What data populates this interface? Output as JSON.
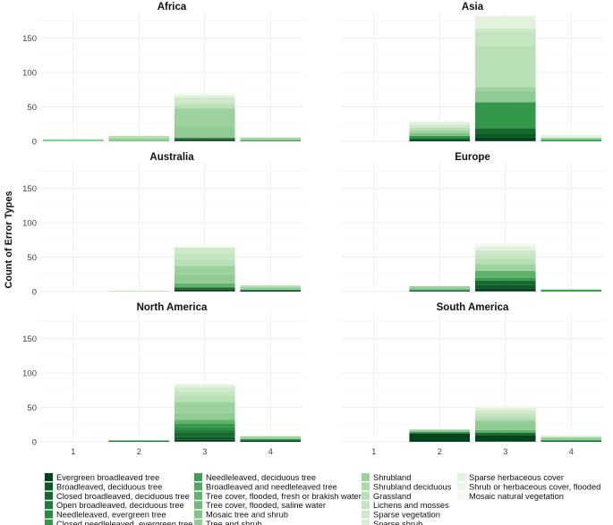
{
  "chart_data": {
    "type": "bar",
    "stacked": true,
    "facets": [
      "Africa",
      "Asia",
      "Australia",
      "Europe",
      "North America",
      "South America"
    ],
    "categories": [
      "1",
      "2",
      "3",
      "4"
    ],
    "ylabel": "Count of Error Types",
    "xlabel": "",
    "ylim": [
      0,
      190
    ],
    "yticks": [
      0,
      50,
      100,
      150
    ],
    "grid": true,
    "legend_position": "bottom",
    "legend": [
      {
        "name": "Evergreen broadleaved tree",
        "color": "#00441b"
      },
      {
        "name": "Broadleaved, deciduous tree",
        "color": "#0a5a27"
      },
      {
        "name": "Closed broadleaved, deciduous tree",
        "color": "#17692f"
      },
      {
        "name": "Open broadleaved, deciduous tree",
        "color": "#217a38"
      },
      {
        "name": "Needleleaved, evergreen tree",
        "color": "#2a8a41"
      },
      {
        "name": "Closed needleleaved, evergreen tree",
        "color": "#34974a"
      },
      {
        "name": "Needleleaved, deciduous tree",
        "color": "#419f54"
      },
      {
        "name": "Broadleaved and needleleaved tree",
        "color": "#4fa85f"
      },
      {
        "name": "Tree cover, flooded, fresh or brakish water",
        "color": "#5fb16c"
      },
      {
        "name": "Tree cover, flooded, saline water",
        "color": "#6fba78"
      },
      {
        "name": "Mosaic tree and shrub",
        "color": "#7fc385"
      },
      {
        "name": "Tree and shrub",
        "color": "#8fcb92"
      },
      {
        "name": "Shrubland",
        "color": "#9dd29e"
      },
      {
        "name": "Shrubland deciduous",
        "color": "#abd9aa"
      },
      {
        "name": "Grassland",
        "color": "#b8dfb5"
      },
      {
        "name": "Lichens and mosses",
        "color": "#c4e5c0"
      },
      {
        "name": "Sparse vegetation",
        "color": "#cfeaca"
      },
      {
        "name": "Sparse shrub",
        "color": "#d9eed4"
      },
      {
        "name": "Sparse herbaceous cover",
        "color": "#e2f2dd"
      },
      {
        "name": "Shrub or herbaceous cover, flooded",
        "color": "#ebf6e7"
      },
      {
        "name": "Mosaic natural vegetation",
        "color": "#f3faf1"
      }
    ],
    "panels": [
      {
        "title": "Africa",
        "bars": [
          {
            "category": "1",
            "segments": [
              {
                "class": "Tree cover, flooded, saline water",
                "value": 1
              },
              {
                "class": "Tree and shrub",
                "value": 1
              },
              {
                "class": "Shrubland",
                "value": 1
              }
            ]
          },
          {
            "category": "2",
            "segments": [
              {
                "class": "Mosaic tree and shrub",
                "value": 2
              },
              {
                "class": "Shrubland",
                "value": 3
              },
              {
                "class": "Grassland",
                "value": 3
              }
            ]
          },
          {
            "category": "3",
            "segments": [
              {
                "class": "Evergreen broadleaved tree",
                "value": 1
              },
              {
                "class": "Broadleaved, deciduous tree",
                "value": 2
              },
              {
                "class": "Closed broadleaved, deciduous tree",
                "value": 2
              },
              {
                "class": "Tree and shrub",
                "value": 17
              },
              {
                "class": "Shrubland",
                "value": 26
              },
              {
                "class": "Grassland",
                "value": 4
              },
              {
                "class": "Lichens and mosses",
                "value": 5
              },
              {
                "class": "Sparse vegetation",
                "value": 7
              },
              {
                "class": "Sparse herbaceous cover",
                "value": 3
              },
              {
                "class": "Mosaic natural vegetation",
                "value": 3
              }
            ]
          },
          {
            "category": "4",
            "segments": [
              {
                "class": "Closed broadleaved, deciduous tree",
                "value": 1
              },
              {
                "class": "Tree and shrub",
                "value": 2
              },
              {
                "class": "Shrubland",
                "value": 2
              },
              {
                "class": "Sparse vegetation",
                "value": 1
              }
            ]
          }
        ]
      },
      {
        "title": "Asia",
        "bars": [
          {
            "category": "1",
            "segments": []
          },
          {
            "category": "2",
            "segments": [
              {
                "class": "Evergreen broadleaved tree",
                "value": 2
              },
              {
                "class": "Closed broadleaved, deciduous tree",
                "value": 3
              },
              {
                "class": "Closed needleleaved, evergreen tree",
                "value": 3
              },
              {
                "class": "Mosaic tree and shrub",
                "value": 4
              },
              {
                "class": "Shrubland",
                "value": 4
              },
              {
                "class": "Grassland",
                "value": 4
              },
              {
                "class": "Sparse vegetation",
                "value": 4
              },
              {
                "class": "Sparse herbaceous cover",
                "value": 4
              },
              {
                "class": "Mosaic natural vegetation",
                "value": 2
              }
            ]
          },
          {
            "category": "3",
            "segments": [
              {
                "class": "Evergreen broadleaved tree",
                "value": 6
              },
              {
                "class": "Broadleaved, deciduous tree",
                "value": 5
              },
              {
                "class": "Closed broadleaved, deciduous tree",
                "value": 8
              },
              {
                "class": "Closed needleleaved, evergreen tree",
                "value": 38
              },
              {
                "class": "Tree and shrub",
                "value": 16
              },
              {
                "class": "Shrubland",
                "value": 6
              },
              {
                "class": "Grassland",
                "value": 60
              },
              {
                "class": "Lichens and mosses",
                "value": 21
              },
              {
                "class": "Sparse vegetation",
                "value": 4
              },
              {
                "class": "Sparse herbaceous cover",
                "value": 18
              },
              {
                "class": "Mosaic natural vegetation",
                "value": 2
              }
            ]
          },
          {
            "category": "4",
            "segments": [
              {
                "class": "Closed needleleaved, evergreen tree",
                "value": 2
              },
              {
                "class": "Tree and shrub",
                "value": 3
              },
              {
                "class": "Sparse herbaceous cover",
                "value": 4
              }
            ]
          }
        ]
      },
      {
        "title": "Australia",
        "bars": [
          {
            "category": "1",
            "segments": []
          },
          {
            "category": "2",
            "segments": [
              {
                "class": "Grassland",
                "value": 1
              }
            ]
          },
          {
            "category": "3",
            "segments": [
              {
                "class": "Evergreen broadleaved tree",
                "value": 3
              },
              {
                "class": "Closed broadleaved, deciduous tree",
                "value": 3
              },
              {
                "class": "Tree cover, flooded, fresh or brakish water",
                "value": 6
              },
              {
                "class": "Tree and shrub",
                "value": 13
              },
              {
                "class": "Shrubland",
                "value": 12
              },
              {
                "class": "Grassland",
                "value": 10
              },
              {
                "class": "Lichens and mosses",
                "value": 9
              },
              {
                "class": "Sparse vegetation",
                "value": 8
              },
              {
                "class": "Mosaic natural vegetation",
                "value": 3
              }
            ]
          },
          {
            "category": "4",
            "segments": [
              {
                "class": "Evergreen broadleaved tree",
                "value": 2
              },
              {
                "class": "Tree and shrub",
                "value": 3
              },
              {
                "class": "Shrubland",
                "value": 2
              },
              {
                "class": "Grassland",
                "value": 2
              }
            ]
          }
        ]
      },
      {
        "title": "Europe",
        "bars": [
          {
            "category": "1",
            "segments": []
          },
          {
            "category": "2",
            "segments": [
              {
                "class": "Closed broadleaved, deciduous tree",
                "value": 2
              },
              {
                "class": "Mosaic tree and shrub",
                "value": 3
              },
              {
                "class": "Shrubland",
                "value": 3
              }
            ]
          },
          {
            "category": "3",
            "segments": [
              {
                "class": "Evergreen broadleaved tree",
                "value": 4
              },
              {
                "class": "Broadleaved, deciduous tree",
                "value": 6
              },
              {
                "class": "Closed broadleaved, deciduous tree",
                "value": 6
              },
              {
                "class": "Closed needleleaved, evergreen tree",
                "value": 4
              },
              {
                "class": "Tree cover, flooded, fresh or brakish water",
                "value": 10
              },
              {
                "class": "Shrubland",
                "value": 10
              },
              {
                "class": "Grassland",
                "value": 8
              },
              {
                "class": "Lichens and mosses",
                "value": 6
              },
              {
                "class": "Sparse vegetation",
                "value": 6
              },
              {
                "class": "Sparse herbaceous cover",
                "value": 6
              },
              {
                "class": "Mosaic natural vegetation",
                "value": 4
              }
            ]
          },
          {
            "category": "4",
            "segments": [
              {
                "class": "Closed needleleaved, evergreen tree",
                "value": 2
              },
              {
                "class": "Tree cover, flooded, fresh or brakish water",
                "value": 1
              }
            ]
          }
        ]
      },
      {
        "title": "North America",
        "bars": [
          {
            "category": "1",
            "segments": []
          },
          {
            "category": "2",
            "segments": [
              {
                "class": "Evergreen broadleaved tree",
                "value": 1
              },
              {
                "class": "Closed needleleaved, evergreen tree",
                "value": 1
              }
            ]
          },
          {
            "category": "3",
            "segments": [
              {
                "class": "Evergreen broadleaved tree",
                "value": 3
              },
              {
                "class": "Broadleaved, deciduous tree",
                "value": 4
              },
              {
                "class": "Closed broadleaved, deciduous tree",
                "value": 6
              },
              {
                "class": "Open broadleaved, deciduous tree",
                "value": 4
              },
              {
                "class": "Needleleaved, evergreen tree",
                "value": 4
              },
              {
                "class": "Closed needleleaved, evergreen tree",
                "value": 5
              },
              {
                "class": "Tree cover, flooded, fresh or brakish water",
                "value": 6
              },
              {
                "class": "Tree and shrub",
                "value": 10
              },
              {
                "class": "Shrubland",
                "value": 16
              },
              {
                "class": "Grassland",
                "value": 9
              },
              {
                "class": "Lichens and mosses",
                "value": 6
              },
              {
                "class": "Sparse vegetation",
                "value": 6
              },
              {
                "class": "Sparse herbaceous cover",
                "value": 4
              },
              {
                "class": "Mosaic natural vegetation",
                "value": 2
              }
            ]
          },
          {
            "category": "4",
            "segments": [
              {
                "class": "Evergreen broadleaved tree",
                "value": 2
              },
              {
                "class": "Closed needleleaved, evergreen tree",
                "value": 2
              },
              {
                "class": "Tree and shrub",
                "value": 2
              },
              {
                "class": "Shrubland",
                "value": 2
              },
              {
                "class": "Sparse herbaceous cover",
                "value": 1
              }
            ]
          }
        ]
      },
      {
        "title": "South America",
        "bars": [
          {
            "category": "1",
            "segments": []
          },
          {
            "category": "2",
            "segments": [
              {
                "class": "Evergreen broadleaved tree",
                "value": 12
              },
              {
                "class": "Closed broadleaved, deciduous tree",
                "value": 2
              },
              {
                "class": "Tree and shrub",
                "value": 3
              },
              {
                "class": "Shrubland",
                "value": 1
              }
            ]
          },
          {
            "category": "3",
            "segments": [
              {
                "class": "Evergreen broadleaved tree",
                "value": 10
              },
              {
                "class": "Closed broadleaved, deciduous tree",
                "value": 3
              },
              {
                "class": "Tree cover, flooded, fresh or brakish water",
                "value": 4
              },
              {
                "class": "Tree and shrub",
                "value": 11
              },
              {
                "class": "Shrubland",
                "value": 4
              },
              {
                "class": "Grassland",
                "value": 5
              },
              {
                "class": "Lichens and mosses",
                "value": 5
              },
              {
                "class": "Sparse vegetation",
                "value": 4
              },
              {
                "class": "Sparse herbaceous cover",
                "value": 4
              },
              {
                "class": "Mosaic natural vegetation",
                "value": 3
              }
            ]
          },
          {
            "category": "4",
            "segments": [
              {
                "class": "Closed broadleaved, deciduous tree",
                "value": 2
              },
              {
                "class": "Tree and shrub",
                "value": 3
              },
              {
                "class": "Shrubland",
                "value": 2
              },
              {
                "class": "Sparse herbaceous cover",
                "value": 2
              }
            ]
          }
        ]
      }
    ]
  }
}
